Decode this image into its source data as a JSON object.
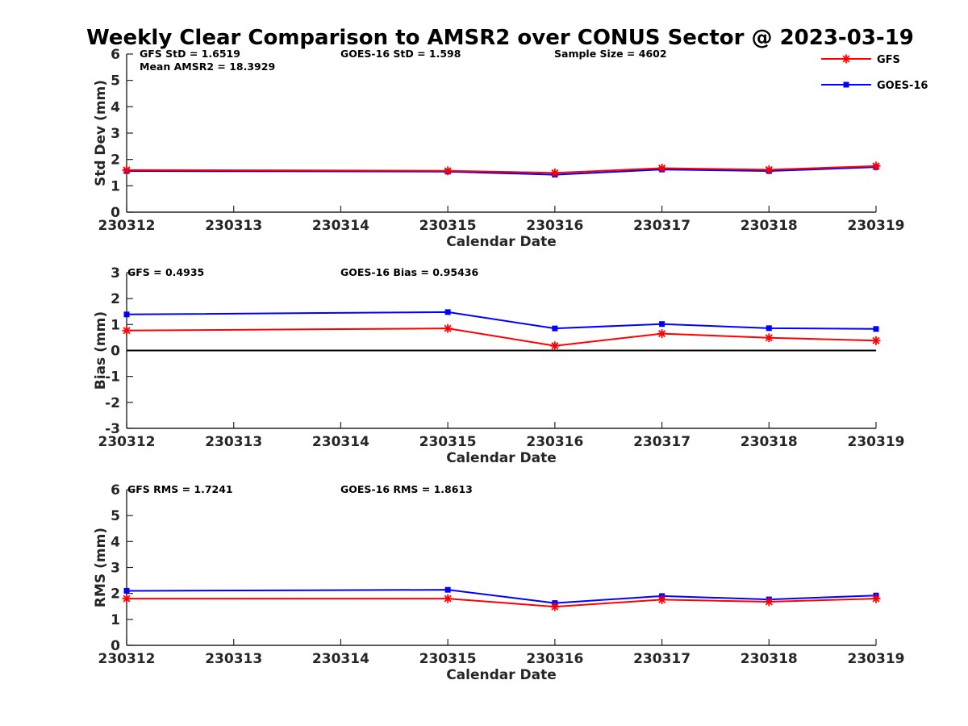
{
  "title": "Weekly Clear Comparison to AMSR2 over CONUS Sector @ 2023-03-19",
  "legend": {
    "placement": "top-right",
    "entries": [
      {
        "name": "GFS",
        "color": "#ff0000",
        "marker": "asterisk"
      },
      {
        "name": "GOES-16",
        "color": "#0000ff",
        "marker": "square"
      }
    ]
  },
  "chart_data": [
    {
      "type": "line",
      "xlabel": "Calendar Date",
      "ylabel": "Std Dev (mm)",
      "categories": [
        "230312",
        "230313",
        "230314",
        "230315",
        "230316",
        "230317",
        "230318",
        "230319"
      ],
      "ylim": [
        0,
        6
      ],
      "yticks": [
        "0",
        "1",
        "2",
        "3",
        "4",
        "5",
        "6"
      ],
      "grid": false,
      "zero_line": false,
      "annotations": {
        "gfs": "GFS StD = 1.6519",
        "goes": "GOES-16 StD = 1.598",
        "extra": "Sample Size = 4602",
        "mean": "Mean AMSR2 = 18.3929"
      },
      "series": [
        {
          "name": "GFS",
          "color": "#ff0000",
          "marker": "asterisk",
          "x": [
            0,
            3,
            4,
            5,
            6,
            7
          ],
          "values": [
            1.6,
            1.57,
            1.49,
            1.67,
            1.61,
            1.75
          ]
        },
        {
          "name": "GOES-16",
          "color": "#0000ff",
          "marker": "square",
          "x": [
            0,
            3,
            4,
            5,
            6,
            7
          ],
          "values": [
            1.56,
            1.54,
            1.42,
            1.62,
            1.56,
            1.71
          ]
        }
      ]
    },
    {
      "type": "line",
      "xlabel": "Calendar Date",
      "ylabel": "Bias (mm)",
      "categories": [
        "230312",
        "230313",
        "230314",
        "230315",
        "230316",
        "230317",
        "230318",
        "230319"
      ],
      "ylim": [
        -3,
        3
      ],
      "yticks": [
        "-3",
        "-2",
        "-1",
        "0",
        "1",
        "2",
        "3"
      ],
      "grid": false,
      "zero_line": true,
      "annotations": {
        "gfs": "GFS = 0.4935",
        "goes": "GOES-16 Bias  = 0.95436"
      },
      "series": [
        {
          "name": "GFS",
          "color": "#ff0000",
          "marker": "asterisk",
          "x": [
            0,
            3,
            4,
            5,
            6,
            7
          ],
          "values": [
            0.77,
            0.85,
            0.18,
            0.65,
            0.49,
            0.38
          ]
        },
        {
          "name": "GOES-16",
          "color": "#0000ff",
          "marker": "square",
          "x": [
            0,
            3,
            4,
            5,
            6,
            7
          ],
          "values": [
            1.39,
            1.48,
            0.85,
            1.02,
            0.86,
            0.83
          ]
        }
      ]
    },
    {
      "type": "line",
      "xlabel": "Calendar Date",
      "ylabel": "RMS (mm)",
      "categories": [
        "230312",
        "230313",
        "230314",
        "230315",
        "230316",
        "230317",
        "230318",
        "230319"
      ],
      "ylim": [
        0,
        6
      ],
      "yticks": [
        "0",
        "1",
        "2",
        "3",
        "4",
        "5",
        "6"
      ],
      "grid": false,
      "zero_line": false,
      "annotations": {
        "gfs": "GFS RMS = 1.7241",
        "goes": "GOES-16 RMS = 1.8613"
      },
      "series": [
        {
          "name": "GFS",
          "color": "#ff0000",
          "marker": "asterisk",
          "x": [
            0,
            3,
            4,
            5,
            6,
            7
          ],
          "values": [
            1.8,
            1.8,
            1.49,
            1.76,
            1.68,
            1.8
          ]
        },
        {
          "name": "GOES-16",
          "color": "#0000ff",
          "marker": "square",
          "x": [
            0,
            3,
            4,
            5,
            6,
            7
          ],
          "values": [
            2.1,
            2.14,
            1.63,
            1.9,
            1.77,
            1.92
          ]
        }
      ]
    }
  ]
}
